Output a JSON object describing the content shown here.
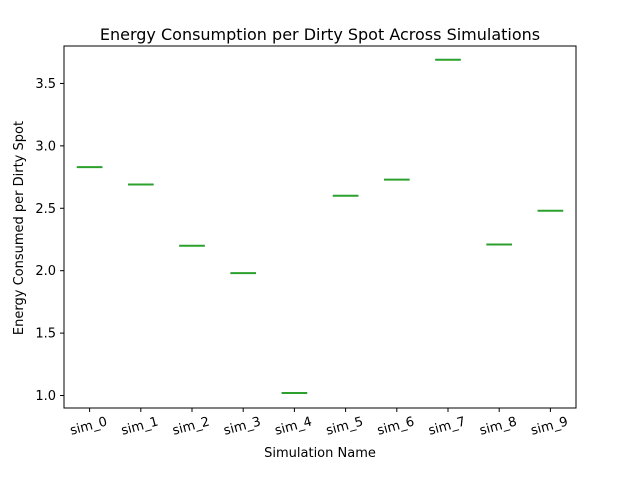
{
  "chart_data": {
    "type": "box",
    "title": "Energy Consumption per Dirty Spot Across Simulations",
    "xlabel": "Simulation Name",
    "ylabel": "Energy Consumed per Dirty Spot",
    "categories": [
      "sim_0",
      "sim_1",
      "sim_2",
      "sim_3",
      "sim_4",
      "sim_5",
      "sim_6",
      "sim_7",
      "sim_8",
      "sim_9"
    ],
    "values": [
      2.83,
      2.69,
      2.2,
      1.98,
      1.02,
      2.6,
      2.73,
      3.69,
      2.21,
      2.48
    ],
    "ylim": [
      0.9,
      3.8
    ],
    "yticks": [
      "1.0",
      "1.5",
      "2.0",
      "2.5",
      "3.0",
      "3.5"
    ],
    "grid": false,
    "colors": {
      "median": "#2ca02c",
      "box": "#1f77b4",
      "axes": "#000000"
    }
  }
}
